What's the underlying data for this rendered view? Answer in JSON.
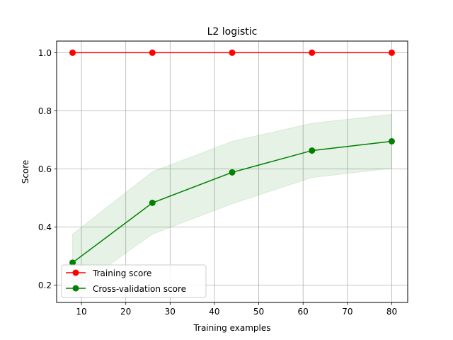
{
  "chart_data": {
    "type": "line",
    "title": "L2 logistic",
    "xlabel": "Training examples",
    "ylabel": "Score",
    "xlim": [
      4.4,
      83.6
    ],
    "ylim": [
      0.14,
      1.04
    ],
    "xticks": [
      10,
      20,
      30,
      40,
      50,
      60,
      70,
      80
    ],
    "yticks": [
      0.2,
      0.4,
      0.6,
      0.8,
      1.0
    ],
    "x": [
      8,
      26,
      44,
      62,
      80
    ],
    "grid": true,
    "legend_position": "lower-left",
    "series": [
      {
        "name": "Training score",
        "color": "#ff0000",
        "values": [
          1.0,
          1.0,
          1.0,
          1.0,
          1.0
        ],
        "band_lower": [
          1.0,
          1.0,
          1.0,
          1.0,
          1.0
        ],
        "band_upper": [
          1.0,
          1.0,
          1.0,
          1.0,
          1.0
        ]
      },
      {
        "name": "Cross-validation score",
        "color": "#008000",
        "values": [
          0.277,
          0.483,
          0.588,
          0.663,
          0.695
        ],
        "band_lower": [
          0.18,
          0.375,
          0.48,
          0.57,
          0.602
        ],
        "band_upper": [
          0.375,
          0.59,
          0.695,
          0.757,
          0.788
        ]
      }
    ]
  }
}
